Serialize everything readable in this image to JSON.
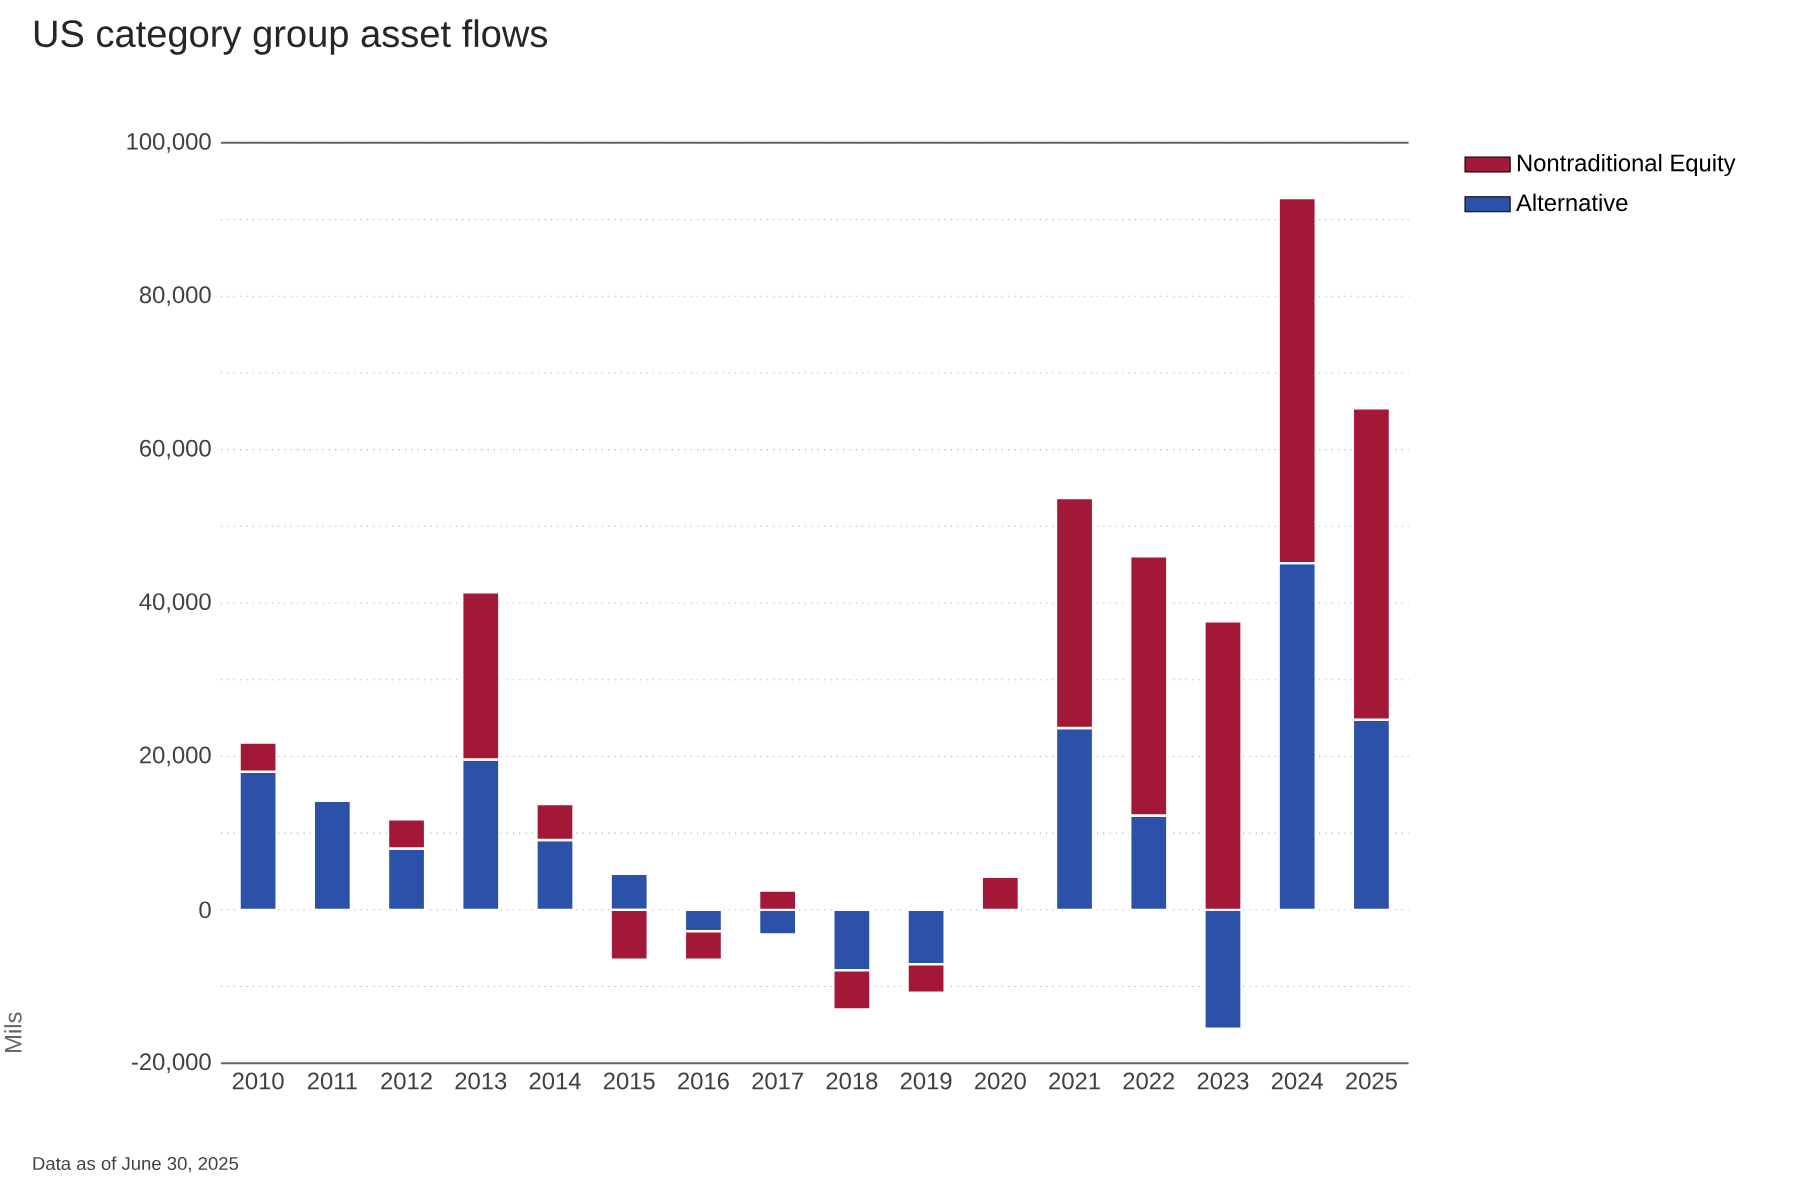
{
  "chart_data": {
    "type": "bar",
    "title": "US category group asset flows",
    "ylabel": "Mils",
    "categories": [
      "2010",
      "2011",
      "2012",
      "2013",
      "2014",
      "2015",
      "2016",
      "2017",
      "2018",
      "2019",
      "2020",
      "2021",
      "2022",
      "2023",
      "2024",
      "2025"
    ],
    "series": [
      {
        "name": "Alternative",
        "color": "#2b52a8",
        "values": [
          18000,
          14200,
          8000,
          19600,
          9100,
          4700,
          -2800,
          -3200,
          -7900,
          -7100,
          0,
          23700,
          12300,
          -15500,
          45200,
          24800
        ]
      },
      {
        "name": "Nontraditional Equity",
        "color": "#a31837",
        "values": [
          3800,
          0,
          3800,
          21800,
          4700,
          -6500,
          -3700,
          2500,
          -5100,
          -3700,
          4300,
          30000,
          33800,
          37600,
          47600,
          40600
        ]
      }
    ],
    "stacked": true,
    "ylim": [
      -20000,
      100000
    ],
    "yticks": [
      {
        "value": -20000,
        "label": "-20,000"
      },
      {
        "value": 0,
        "label": "0"
      },
      {
        "value": 20000,
        "label": "20,000"
      },
      {
        "value": 40000,
        "label": "40,000"
      },
      {
        "value": 60000,
        "label": "60,000"
      },
      {
        "value": 80000,
        "label": "80,000"
      },
      {
        "value": 100000,
        "label": "100,000"
      }
    ],
    "grid": "y",
    "legend": "top right",
    "annotations": [
      "Data as of June 30, 2025"
    ]
  }
}
